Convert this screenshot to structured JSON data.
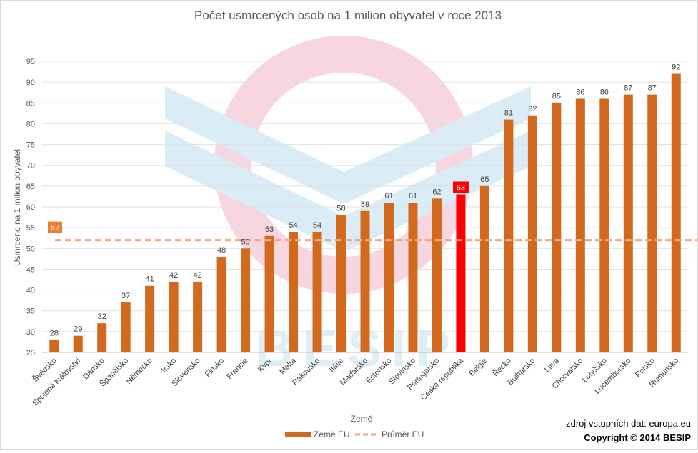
{
  "chart_data": {
    "type": "bar",
    "title": "Počet usmrcených osob na 1 milion obyvatel v roce 2013",
    "xlabel": "Země",
    "ylabel": "Usmrceno na 1 milion obyvatel",
    "ylim": [
      25,
      95
    ],
    "yticks": [
      25,
      30,
      35,
      40,
      45,
      50,
      55,
      60,
      65,
      70,
      75,
      80,
      85,
      90,
      95
    ],
    "grid": true,
    "legend_position": "bottom",
    "categories": [
      "Švédsko",
      "Spojené království",
      "Dánsko",
      "Španělsko",
      "Německo",
      "Irsko",
      "Slovensko",
      "Finsko",
      "Francie",
      "Kypr",
      "Malta",
      "Rakousko",
      "Itálie",
      "Maďarsko",
      "Estonsko",
      "Slovinsko",
      "Portugalsko",
      "Česká republika",
      "Belgie",
      "Řecko",
      "Bulharsko",
      "Litva",
      "Chorvatsko",
      "Lotyšsko",
      "Lucembursko",
      "Polsko",
      "Rumunsko"
    ],
    "series": [
      {
        "name": "Země EU",
        "type": "bar",
        "color": "#d2691e",
        "values": [
          28,
          29,
          32,
          37,
          41,
          42,
          42,
          48,
          50,
          53,
          54,
          54,
          58,
          59,
          61,
          61,
          62,
          63,
          65,
          81,
          82,
          85,
          86,
          86,
          87,
          87,
          92
        ],
        "highlight": {
          "category": "Česká republika",
          "color": "#ff0000"
        }
      },
      {
        "name": "Průměr EU",
        "type": "line",
        "style": "dashed",
        "color": "#f4a582",
        "value": 52,
        "label": "52",
        "label_color": "#ed7d31"
      }
    ],
    "source_text": "zdroj vstupních dat: europa.eu",
    "copyright": "Copyright © 2014 BESIP",
    "watermark": "BESIP"
  }
}
